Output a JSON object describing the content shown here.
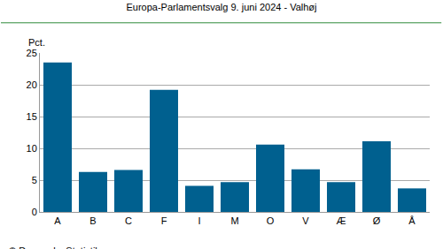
{
  "chart_data": {
    "type": "bar",
    "title": "Europa-Parlamentsvalg 9. juni 2024 - Valhøj",
    "ylabel": "Pct.",
    "annotations": [
      "© Danmarks Statistik"
    ],
    "categories": [
      "A",
      "B",
      "C",
      "F",
      "I",
      "M",
      "O",
      "V",
      "Æ",
      "Ø",
      "Å"
    ],
    "values": [
      23.5,
      6.3,
      6.6,
      19.2,
      4.1,
      4.7,
      10.6,
      6.7,
      4.7,
      11.1,
      3.7
    ],
    "color": "#00608f",
    "ylim": [
      0,
      25
    ],
    "yticks": [
      0,
      5,
      10,
      15,
      20,
      25
    ],
    "grid": true
  }
}
